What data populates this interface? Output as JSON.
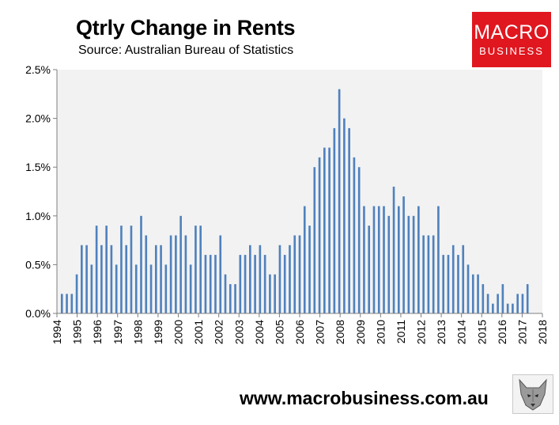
{
  "header": {
    "title": "Qtrly Change in Rents",
    "subtitle": "Source: Australian Bureau of Statistics"
  },
  "logo": {
    "main": "MACRO",
    "sub": "BUSINESS"
  },
  "footer": {
    "website": "www.macrobusiness.com.au",
    "emblem_icon": "wolf-icon"
  },
  "chart_data": {
    "type": "bar",
    "title": "Qtrly Change in Rents",
    "subtitle": "Source: Australian Bureau of Statistics",
    "xlabel": "",
    "ylabel": "",
    "ylim": [
      0,
      2.5
    ],
    "y_ticks": [
      "0.0%",
      "0.5%",
      "1.0%",
      "1.5%",
      "2.0%",
      "2.5%"
    ],
    "y_tick_values": [
      0,
      0.5,
      1.0,
      1.5,
      2.0,
      2.5
    ],
    "x_tick_labels": [
      "1994",
      "1995",
      "1996",
      "1997",
      "1998",
      "1999",
      "2000",
      "2001",
      "2002",
      "2003",
      "2004",
      "2005",
      "2006",
      "2007",
      "2008",
      "2009",
      "2010",
      "2011",
      "2012",
      "2013",
      "2014",
      "2015",
      "2016",
      "2017",
      "2018"
    ],
    "grid": false,
    "bar_color": "#4f81bd",
    "plot_background": "#f2f2f2",
    "values": [
      0.2,
      0.2,
      0.2,
      0.4,
      0.7,
      0.7,
      0.5,
      0.9,
      0.7,
      0.9,
      0.7,
      0.5,
      0.9,
      0.7,
      0.9,
      0.5,
      1.0,
      0.8,
      0.5,
      0.7,
      0.7,
      0.5,
      0.8,
      0.8,
      1.0,
      0.8,
      0.5,
      0.9,
      0.9,
      0.6,
      0.6,
      0.6,
      0.8,
      0.4,
      0.3,
      0.3,
      0.6,
      0.6,
      0.7,
      0.6,
      0.7,
      0.6,
      0.4,
      0.4,
      0.7,
      0.6,
      0.7,
      0.8,
      0.8,
      1.1,
      0.9,
      1.5,
      1.6,
      1.7,
      1.7,
      1.9,
      2.3,
      2.0,
      1.9,
      1.6,
      1.5,
      1.1,
      0.9,
      1.1,
      1.1,
      1.1,
      1.0,
      1.3,
      1.1,
      1.2,
      1.0,
      1.0,
      1.1,
      0.8,
      0.8,
      0.8,
      1.1,
      0.6,
      0.6,
      0.7,
      0.6,
      0.7,
      0.5,
      0.4,
      0.4,
      0.3,
      0.2,
      0.1,
      0.2,
      0.3,
      0.1,
      0.1,
      0.2,
      0.2,
      0.3
    ]
  }
}
